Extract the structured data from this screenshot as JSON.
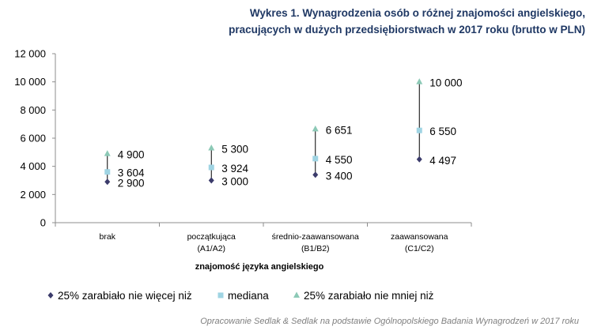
{
  "chart_data": {
    "type": "scatter",
    "title_lines": [
      "Wykres 1. Wynagrodzenia osób o różnej znajomości angielskiego,",
      "pracujących w dużych przedsiębiorstwach w 2017 roku (brutto w PLN)"
    ],
    "xlabel": "znajomość języka angielskiego",
    "ylabel": "",
    "ylim": [
      0,
      12000
    ],
    "yticks": [
      0,
      2000,
      4000,
      6000,
      8000,
      10000,
      12000
    ],
    "ytick_labels": [
      "0",
      "2 000",
      "4 000",
      "6 000",
      "8 000",
      "10 000",
      "12 000"
    ],
    "categories": [
      [
        "brak"
      ],
      [
        "początkująca",
        "(A1/A2)"
      ],
      [
        "średnio-zaawansowana",
        "(B1/B2)"
      ],
      [
        "zaawansowana",
        "(C1/C2)"
      ]
    ],
    "series": [
      {
        "name": "25% zarabiało nie więcej niż",
        "marker": "diamond",
        "color": "#3b3b6b",
        "values": [
          2900,
          3000,
          3400,
          4497
        ],
        "labels": [
          "2 900",
          "3 000",
          "3 400",
          "4 497"
        ]
      },
      {
        "name": "mediana",
        "marker": "square",
        "color": "#9fd4e3",
        "values": [
          3604,
          3924,
          4550,
          6550
        ],
        "labels": [
          "3 604",
          "3 924",
          "4 550",
          "6 550"
        ]
      },
      {
        "name": "25% zarabiało nie mniej niż",
        "marker": "triangle",
        "color": "#8cc9b6",
        "values": [
          4900,
          5300,
          6651,
          10000
        ],
        "labels": [
          "4 900",
          "5 300",
          "6 651",
          "10 000"
        ]
      }
    ],
    "grid": false,
    "legend_position": "bottom"
  },
  "source_note": "Opracowanie Sedlak & Sedlak na podstawie Ogólnopolskiego Badania Wynagrodzeń w 2017 roku"
}
